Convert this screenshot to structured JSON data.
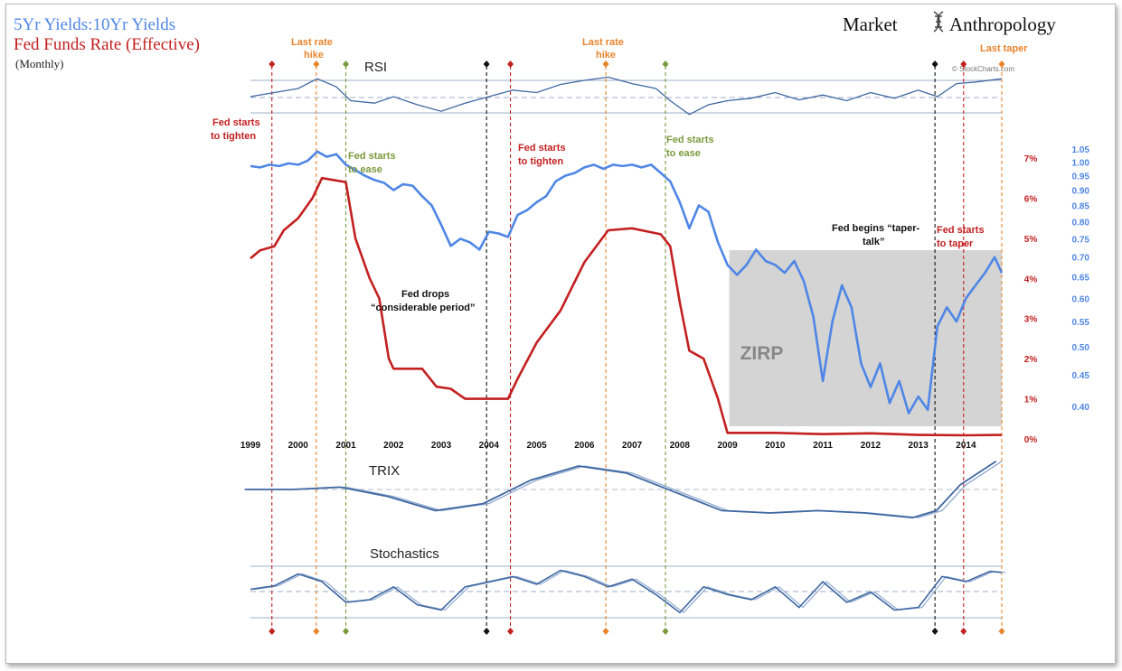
{
  "title": {
    "line1_a": "5Yr Yields",
    "line1_sep": ":",
    "line1_b": "10Yr Yields",
    "line2": "Fed Funds Rate (Effective)",
    "line3": "(Monthly)"
  },
  "brand": {
    "left": "Market",
    "right": "Anthropology"
  },
  "credit": "© StockCharts.com",
  "colors": {
    "ratio": "#4f86e6",
    "fed": "#c32020",
    "orange": "#e8842c",
    "green": "#7b9a3d",
    "black": "#111111",
    "panel_line": "#3f67a1",
    "panel_line_light": "#8fa9cf",
    "zirp": "#d4d4d4"
  },
  "panels": {
    "rsi": "RSI",
    "trix": "TRIX",
    "stochastics": "Stochastics"
  },
  "annotations": {
    "fed_tighten_1a": "Fed starts",
    "fed_tighten_1b": "to tighten",
    "last_hike_1a": "Last rate",
    "last_hike_1b": "hike",
    "fed_ease_1a": "Fed starts",
    "fed_ease_1b": "to ease",
    "fed_tighten_2a": "Fed starts",
    "fed_tighten_2b": "to tighten",
    "last_hike_2a": "Last rate",
    "last_hike_2b": "hike",
    "fed_ease_2a": "Fed starts",
    "fed_ease_2b": "to ease",
    "considerable_a": "Fed drops",
    "considerable_b": "“considerable period”",
    "taper_talk_a": "Fed begins “taper-",
    "taper_talk_b": "talk”",
    "fed_taper_a": "Fed starts",
    "fed_taper_b": "to taper",
    "last_taper": "Last taper",
    "zirp": "ZIRP"
  },
  "chart_data": {
    "type": "line",
    "title": "5Yr Yields:10Yr Yields / Fed Funds Rate (Effective) (Monthly)",
    "x_ticks": [
      "1999",
      "2000",
      "2001",
      "2002",
      "2003",
      "2004",
      "2005",
      "2006",
      "2007",
      "2008",
      "2009",
      "2010",
      "2011",
      "2012",
      "2013",
      "2014"
    ],
    "xlim": [
      1999.0,
      2014.75
    ],
    "right_axis_fed": {
      "ticks": [
        "0%",
        "1%",
        "2%",
        "3%",
        "4%",
        "5%",
        "6%",
        "7%"
      ],
      "range": [
        0,
        7
      ]
    },
    "right_axis_ratio": {
      "ticks": [
        "0.40",
        "0.45",
        "0.50",
        "0.55",
        "0.60",
        "0.65",
        "0.70",
        "0.75",
        "0.80",
        "0.85",
        "0.90",
        "0.95",
        "1.00",
        "1.05"
      ],
      "range": [
        0.38,
        1.06
      ],
      "scale": "log"
    },
    "series": [
      {
        "name": "5Yr Yields:10Yr Yields",
        "axis": "ratio",
        "points": [
          [
            1999.0,
            0.985
          ],
          [
            1999.2,
            0.98
          ],
          [
            1999.4,
            0.99
          ],
          [
            1999.6,
            0.985
          ],
          [
            1999.8,
            0.995
          ],
          [
            2000.0,
            0.99
          ],
          [
            2000.2,
            1.005
          ],
          [
            2000.4,
            1.04
          ],
          [
            2000.6,
            1.02
          ],
          [
            2000.8,
            1.03
          ],
          [
            2001.0,
            0.99
          ],
          [
            2001.2,
            0.97
          ],
          [
            2001.4,
            0.95
          ],
          [
            2001.6,
            0.935
          ],
          [
            2001.8,
            0.925
          ],
          [
            2002.0,
            0.9
          ],
          [
            2002.2,
            0.92
          ],
          [
            2002.4,
            0.915
          ],
          [
            2002.6,
            0.88
          ],
          [
            2002.8,
            0.85
          ],
          [
            2003.0,
            0.79
          ],
          [
            2003.2,
            0.73
          ],
          [
            2003.4,
            0.75
          ],
          [
            2003.6,
            0.74
          ],
          [
            2003.8,
            0.72
          ],
          [
            2004.0,
            0.77
          ],
          [
            2004.2,
            0.765
          ],
          [
            2004.4,
            0.755
          ],
          [
            2004.6,
            0.82
          ],
          [
            2004.8,
            0.835
          ],
          [
            2005.0,
            0.86
          ],
          [
            2005.2,
            0.88
          ],
          [
            2005.4,
            0.93
          ],
          [
            2005.6,
            0.95
          ],
          [
            2005.8,
            0.96
          ],
          [
            2006.0,
            0.98
          ],
          [
            2006.2,
            0.99
          ],
          [
            2006.4,
            0.975
          ],
          [
            2006.6,
            0.99
          ],
          [
            2006.8,
            0.985
          ],
          [
            2007.0,
            0.99
          ],
          [
            2007.2,
            0.98
          ],
          [
            2007.4,
            0.99
          ],
          [
            2007.6,
            0.96
          ],
          [
            2007.8,
            0.93
          ],
          [
            2008.0,
            0.86
          ],
          [
            2008.2,
            0.78
          ],
          [
            2008.4,
            0.85
          ],
          [
            2008.6,
            0.83
          ],
          [
            2008.8,
            0.74
          ],
          [
            2009.0,
            0.68
          ],
          [
            2009.2,
            0.655
          ],
          [
            2009.4,
            0.68
          ],
          [
            2009.6,
            0.72
          ],
          [
            2009.8,
            0.69
          ],
          [
            2010.0,
            0.68
          ],
          [
            2010.2,
            0.66
          ],
          [
            2010.4,
            0.69
          ],
          [
            2010.6,
            0.64
          ],
          [
            2010.8,
            0.56
          ],
          [
            2011.0,
            0.44
          ],
          [
            2011.2,
            0.55
          ],
          [
            2011.4,
            0.63
          ],
          [
            2011.6,
            0.58
          ],
          [
            2011.8,
            0.47
          ],
          [
            2012.0,
            0.43
          ],
          [
            2012.2,
            0.47
          ],
          [
            2012.4,
            0.405
          ],
          [
            2012.6,
            0.44
          ],
          [
            2012.8,
            0.39
          ],
          [
            2013.0,
            0.415
          ],
          [
            2013.2,
            0.395
          ],
          [
            2013.4,
            0.54
          ],
          [
            2013.6,
            0.58
          ],
          [
            2013.8,
            0.55
          ],
          [
            2014.0,
            0.6
          ],
          [
            2014.2,
            0.63
          ],
          [
            2014.4,
            0.66
          ],
          [
            2014.6,
            0.7
          ],
          [
            2014.75,
            0.66
          ]
        ]
      },
      {
        "name": "Fed Funds Rate (Effective)",
        "axis": "fed",
        "points": [
          [
            1999.0,
            4.5
          ],
          [
            1999.2,
            4.7
          ],
          [
            1999.5,
            4.8
          ],
          [
            1999.7,
            5.2
          ],
          [
            2000.0,
            5.5
          ],
          [
            2000.3,
            6.0
          ],
          [
            2000.5,
            6.5
          ],
          [
            2001.0,
            6.4
          ],
          [
            2001.2,
            5.0
          ],
          [
            2001.5,
            4.0
          ],
          [
            2001.7,
            3.5
          ],
          [
            2001.9,
            2.0
          ],
          [
            2002.0,
            1.75
          ],
          [
            2002.6,
            1.75
          ],
          [
            2002.9,
            1.3
          ],
          [
            2003.2,
            1.25
          ],
          [
            2003.5,
            1.0
          ],
          [
            2004.0,
            1.0
          ],
          [
            2004.4,
            1.0
          ],
          [
            2004.6,
            1.5
          ],
          [
            2005.0,
            2.4
          ],
          [
            2005.5,
            3.2
          ],
          [
            2006.0,
            4.4
          ],
          [
            2006.5,
            5.2
          ],
          [
            2007.0,
            5.25
          ],
          [
            2007.6,
            5.1
          ],
          [
            2007.8,
            4.8
          ],
          [
            2008.0,
            3.4
          ],
          [
            2008.2,
            2.2
          ],
          [
            2008.5,
            2.0
          ],
          [
            2008.8,
            1.0
          ],
          [
            2009.0,
            0.15
          ],
          [
            2010.0,
            0.15
          ],
          [
            2011.0,
            0.12
          ],
          [
            2012.0,
            0.14
          ],
          [
            2013.0,
            0.1
          ],
          [
            2014.0,
            0.09
          ],
          [
            2014.75,
            0.1
          ]
        ]
      }
    ],
    "events": [
      {
        "label": "Fed starts to tighten",
        "x": 1999.45,
        "color": "red"
      },
      {
        "label": "Last rate hike",
        "x": 2000.38,
        "color": "orange"
      },
      {
        "label": "Fed starts to ease",
        "x": 2001.0,
        "color": "green"
      },
      {
        "label": "Fed drops “considerable period”",
        "x": 2003.95,
        "color": "black"
      },
      {
        "label": "Fed starts to tighten",
        "x": 2004.45,
        "color": "red"
      },
      {
        "label": "Last rate hike",
        "x": 2006.45,
        "color": "orange"
      },
      {
        "label": "Fed starts to ease",
        "x": 2007.7,
        "color": "green"
      },
      {
        "label": "Fed begins “taper-talk”",
        "x": 2013.35,
        "color": "black"
      },
      {
        "label": "Fed starts to taper",
        "x": 2013.95,
        "color": "red"
      },
      {
        "label": "Last taper",
        "x": 2014.75,
        "color": "orange"
      }
    ],
    "zirp_range": [
      2009.0,
      2014.75
    ],
    "indicators": {
      "rsi": [
        [
          1999.0,
          50
        ],
        [
          1999.5,
          55
        ],
        [
          2000.0,
          60
        ],
        [
          2000.4,
          72
        ],
        [
          2000.8,
          62
        ],
        [
          2001.1,
          45
        ],
        [
          2001.6,
          42
        ],
        [
          2002.0,
          50
        ],
        [
          2002.5,
          40
        ],
        [
          2003.0,
          32
        ],
        [
          2003.5,
          42
        ],
        [
          2004.0,
          50
        ],
        [
          2004.5,
          58
        ],
        [
          2005.0,
          55
        ],
        [
          2005.5,
          65
        ],
        [
          2006.0,
          70
        ],
        [
          2006.5,
          74
        ],
        [
          2007.0,
          66
        ],
        [
          2007.5,
          60
        ],
        [
          2007.8,
          45
        ],
        [
          2008.2,
          28
        ],
        [
          2008.6,
          40
        ],
        [
          2009.0,
          45
        ],
        [
          2009.5,
          48
        ],
        [
          2010.0,
          55
        ],
        [
          2010.5,
          46
        ],
        [
          2011.0,
          52
        ],
        [
          2011.5,
          45
        ],
        [
          2012.0,
          55
        ],
        [
          2012.5,
          48
        ],
        [
          2013.0,
          58
        ],
        [
          2013.4,
          50
        ],
        [
          2013.8,
          66
        ],
        [
          2014.2,
          68
        ],
        [
          2014.75,
          72
        ]
      ],
      "trix": [
        [
          1999.0,
          0.0
        ],
        [
          2000.0,
          0.0
        ],
        [
          2001.0,
          0.1
        ],
        [
          2002.0,
          -0.3
        ],
        [
          2003.0,
          -0.9
        ],
        [
          2004.0,
          -0.6
        ],
        [
          2005.0,
          0.4
        ],
        [
          2006.0,
          1.0
        ],
        [
          2007.0,
          0.7
        ],
        [
          2008.0,
          -0.1
        ],
        [
          2009.0,
          -0.9
        ],
        [
          2010.0,
          -1.0
        ],
        [
          2011.0,
          -0.9
        ],
        [
          2012.0,
          -1.0
        ],
        [
          2013.0,
          -1.2
        ],
        [
          2013.5,
          -0.9
        ],
        [
          2014.0,
          0.2
        ],
        [
          2014.75,
          1.2
        ]
      ],
      "stochastics": [
        [
          1999.0,
          55
        ],
        [
          1999.5,
          62
        ],
        [
          2000.0,
          85
        ],
        [
          2000.5,
          70
        ],
        [
          2001.0,
          30
        ],
        [
          2001.5,
          35
        ],
        [
          2002.0,
          60
        ],
        [
          2002.5,
          25
        ],
        [
          2003.0,
          15
        ],
        [
          2003.5,
          60
        ],
        [
          2004.0,
          70
        ],
        [
          2004.5,
          80
        ],
        [
          2005.0,
          65
        ],
        [
          2005.5,
          92
        ],
        [
          2006.0,
          80
        ],
        [
          2006.5,
          60
        ],
        [
          2007.0,
          75
        ],
        [
          2007.5,
          45
        ],
        [
          2008.0,
          10
        ],
        [
          2008.5,
          60
        ],
        [
          2009.0,
          45
        ],
        [
          2009.5,
          35
        ],
        [
          2010.0,
          60
        ],
        [
          2010.5,
          20
        ],
        [
          2011.0,
          70
        ],
        [
          2011.5,
          30
        ],
        [
          2012.0,
          50
        ],
        [
          2012.5,
          15
        ],
        [
          2013.0,
          20
        ],
        [
          2013.5,
          80
        ],
        [
          2014.0,
          70
        ],
        [
          2014.5,
          90
        ],
        [
          2014.75,
          88
        ]
      ]
    }
  }
}
